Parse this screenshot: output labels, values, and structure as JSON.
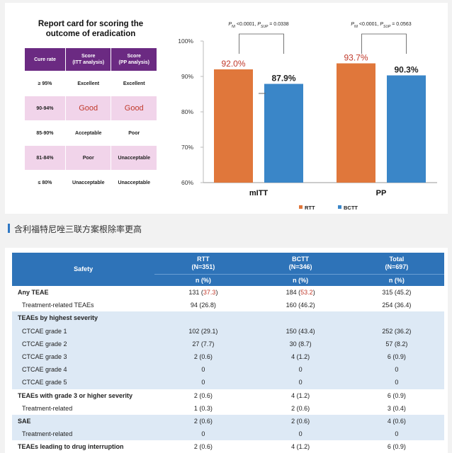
{
  "report_card": {
    "title_line1": "Report card for scoring the",
    "title_line2": "outcome of eradication",
    "headers": [
      {
        "line1": "Cure rate",
        "line2": ""
      },
      {
        "line1": "Score",
        "line2": "(ITT analysis)"
      },
      {
        "line1": "Score",
        "line2": "(PP analysis)"
      }
    ],
    "rows": [
      {
        "cure": "≥ 95%",
        "itt": "Excellent",
        "pp": "Excellent"
      },
      {
        "cure": "90-94%",
        "itt": "Good",
        "pp": "Good"
      },
      {
        "cure": "85-90%",
        "itt": "Acceptable",
        "pp": "Poor"
      },
      {
        "cure": "81-84%",
        "itt": "Poor",
        "pp": "Unacceptable"
      },
      {
        "cure": "≤ 80%",
        "itt": "Unacceptable",
        "pp": "Unacceptable"
      }
    ]
  },
  "colors": {
    "rtt": "#e0773b",
    "bctt": "#3a86c8",
    "header_purple": "#6b2a82",
    "pink_row": "#f1d4ea",
    "blue_header": "#2e73b8",
    "band": "#dde9f5",
    "red_text": "#c0392b"
  },
  "chart_data": {
    "type": "bar",
    "categories": [
      "mITT",
      "PP"
    ],
    "series": [
      {
        "name": "RTT",
        "values": [
          92.0,
          93.7
        ]
      },
      {
        "name": "BCTT",
        "values": [
          87.9,
          90.3
        ]
      }
    ],
    "value_labels": {
      "RTT": [
        "92.0%",
        "93.7%"
      ],
      "BCTT": [
        "87.9%",
        "90.3%"
      ]
    },
    "ylim": [
      60,
      100
    ],
    "yticks": [
      "60%",
      "70%",
      "80%",
      "90%",
      "100%"
    ],
    "significance": [
      {
        "group": "mITT",
        "p_ni": "0.0001",
        "p_sup": "0.0338"
      },
      {
        "group": "PP",
        "p_ni": "0.0001",
        "p_sup": "0.0563"
      }
    ],
    "legend_position": "bottom",
    "grid": false
  },
  "caption": "含利福特尼唑三联方案根除率更高",
  "safety": {
    "header_label": "Safety",
    "columns": [
      {
        "name": "RTT",
        "n": "(N=351)",
        "unit": "n (%)"
      },
      {
        "name": "BCTT",
        "n": "(N=346)",
        "unit": "n (%)"
      },
      {
        "name": "Total",
        "n": "(N=697)",
        "unit": "n (%)"
      }
    ],
    "rows": [
      {
        "label": "Any TEAE",
        "bold": true,
        "sub": false,
        "band": false,
        "rtt": "131 (37.3)",
        "bctt": "184 (53.2)",
        "total": "315 (45.2)"
      },
      {
        "label": "Treatment-related TEAEs",
        "bold": false,
        "sub": true,
        "band": false,
        "rtt": "94 (26.8)",
        "bctt": "160 (46.2)",
        "total": "254 (36.4)"
      },
      {
        "label": "TEAEs by highest severity",
        "bold": true,
        "sub": false,
        "band": true,
        "rtt": "",
        "bctt": "",
        "total": ""
      },
      {
        "label": "CTCAE grade 1",
        "bold": false,
        "sub": true,
        "band": true,
        "rtt": "102 (29.1)",
        "bctt": "150 (43.4)",
        "total": "252 (36.2)"
      },
      {
        "label": "CTCAE grade 2",
        "bold": false,
        "sub": true,
        "band": true,
        "rtt": "27 (7.7)",
        "bctt": "30 (8.7)",
        "total": "57 (8.2)"
      },
      {
        "label": "CTCAE grade 3",
        "bold": false,
        "sub": true,
        "band": true,
        "rtt": "2 (0.6)",
        "bctt": "4 (1.2)",
        "total": "6 (0.9)"
      },
      {
        "label": "CTCAE grade 4",
        "bold": false,
        "sub": true,
        "band": true,
        "rtt": "0",
        "bctt": "0",
        "total": "0"
      },
      {
        "label": "CTCAE grade 5",
        "bold": false,
        "sub": true,
        "band": true,
        "rtt": "0",
        "bctt": "0",
        "total": "0"
      },
      {
        "label": "TEAEs with grade 3 or higher severity",
        "bold": true,
        "sub": false,
        "band": false,
        "rtt": "2 (0.6)",
        "bctt": "4 (1.2)",
        "total": "6 (0.9)"
      },
      {
        "label": "Treatment-related",
        "bold": false,
        "sub": true,
        "band": false,
        "rtt": "1 (0.3)",
        "bctt": "2 (0.6)",
        "total": "3 (0.4)"
      },
      {
        "label": "SAE",
        "bold": true,
        "sub": false,
        "band": true,
        "rtt": "2 (0.6)",
        "bctt": "2 (0.6)",
        "total": "4 (0.6)"
      },
      {
        "label": "Treatment-related",
        "bold": false,
        "sub": true,
        "band": true,
        "rtt": "0",
        "bctt": "0",
        "total": "0"
      },
      {
        "label": "TEAEs leading to drug interruption",
        "bold": true,
        "sub": false,
        "band": false,
        "rtt": "2 (0.6)",
        "bctt": "4 (1.2)",
        "total": "6 (0.9)"
      }
    ]
  }
}
